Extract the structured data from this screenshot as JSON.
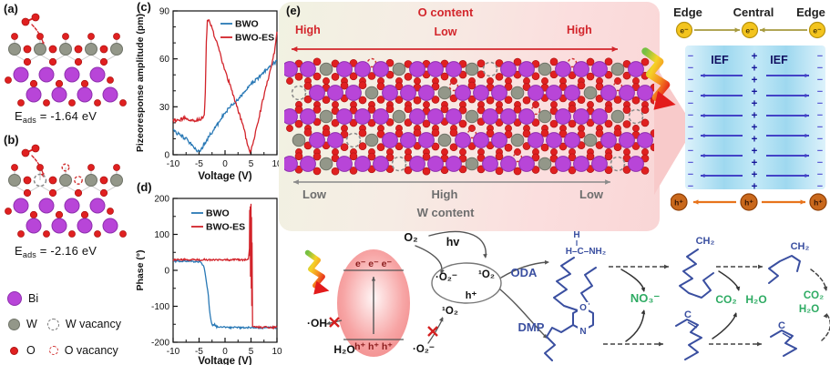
{
  "colors": {
    "bwo": "#2878b5",
    "bwo_es": "#d2232a",
    "bi": "#b845d8",
    "bi_stroke": "#8e2fae",
    "w": "#939789",
    "w_stroke": "#6f7368",
    "o": "#e02020",
    "o_stroke": "#b01414",
    "red_label": "#d3262c",
    "gray_arrow": "#8a8a8a",
    "blue_mol": "#3a4fa0",
    "green": "#2eab63",
    "plus": "#15159a",
    "minus": "#5b5bd6",
    "ief_arrow": "#4343c6",
    "ief_text": "#101060",
    "olive": "#a69a3e",
    "orange": "#e8741c",
    "electron_fill": "#f3c41e",
    "electron_stroke": "#b8930f",
    "hole_fill": "#c9681c",
    "hole_stroke": "#8f3f06"
  },
  "panel_a": {
    "label": "(a)",
    "eads_e": "E",
    "eads_sub": "ads",
    "eads_rest": " = -1.64 eV"
  },
  "panel_b": {
    "label": "(b)",
    "eads_e": "E",
    "eads_sub": "ads",
    "eads_rest": " = -2.16 eV"
  },
  "legend": {
    "bi": "Bi",
    "w": "W",
    "w_vacancy": "W vacancy",
    "o": "O",
    "o_vacancy": "O vacancy"
  },
  "chart_data": [
    {
      "type": "line",
      "label": "(c)",
      "xlabel": "Voltage (V)",
      "ylabel": "Pizeoresponse amplitude (pm)",
      "xlim": [
        -10,
        10
      ],
      "ylim": [
        0,
        90
      ],
      "xticks": [
        -10,
        -5,
        0,
        5,
        10
      ],
      "yticks": [
        0,
        30,
        60,
        90
      ],
      "xminor": 2.5,
      "yminor": 10,
      "noise": 1.1,
      "legend_position": "top-right",
      "series": [
        {
          "name": "BWO",
          "color": "#2878b5",
          "points": [
            [
              -10,
              15
            ],
            [
              -9.5,
              14
            ],
            [
              -9,
              13
            ],
            [
              -8.5,
              12
            ],
            [
              -8,
              11
            ],
            [
              -7.5,
              10
            ],
            [
              -7,
              8
            ],
            [
              -6.5,
              7
            ],
            [
              -6,
              5
            ],
            [
              -5.5,
              3
            ],
            [
              -5,
              2
            ],
            [
              -4.5,
              4
            ],
            [
              -4,
              7
            ],
            [
              -3.5,
              9
            ],
            [
              -3,
              12
            ],
            [
              -2.5,
              14
            ],
            [
              -2,
              17
            ],
            [
              -1.5,
              19
            ],
            [
              -1,
              21
            ],
            [
              -0.5,
              24
            ],
            [
              0,
              26
            ],
            [
              1,
              30
            ],
            [
              2,
              33
            ],
            [
              3,
              37
            ],
            [
              4,
              40
            ],
            [
              5,
              44
            ],
            [
              6,
              47
            ],
            [
              7,
              50
            ],
            [
              8,
              53
            ],
            [
              9,
              56
            ],
            [
              10,
              59
            ]
          ]
        },
        {
          "name": "BWO-ES",
          "color": "#d2232a",
          "points": [
            [
              -10,
              22
            ],
            [
              -9,
              21
            ],
            [
              -8,
              23
            ],
            [
              -7,
              22
            ],
            [
              -6,
              21
            ],
            [
              -5,
              22
            ],
            [
              -4.5,
              23
            ],
            [
              -4,
              24
            ],
            [
              -3.8,
              40
            ],
            [
              -3.6,
              70
            ],
            [
              -3.4,
              84
            ],
            [
              -3.2,
              85
            ],
            [
              -3,
              83
            ],
            [
              -2.5,
              79
            ],
            [
              -2,
              74
            ],
            [
              -1.5,
              69
            ],
            [
              -1,
              64
            ],
            [
              -0.5,
              58
            ],
            [
              0,
              53
            ],
            [
              0.5,
              48
            ],
            [
              1,
              43
            ],
            [
              1.5,
              38
            ],
            [
              2,
              33
            ],
            [
              2.5,
              28
            ],
            [
              3,
              23
            ],
            [
              3.5,
              18
            ],
            [
              4,
              11
            ],
            [
              4.5,
              5
            ],
            [
              4.8,
              1
            ],
            [
              5,
              3
            ],
            [
              5.5,
              9
            ],
            [
              6,
              16
            ],
            [
              6.5,
              23
            ],
            [
              7,
              30
            ],
            [
              7.5,
              37
            ],
            [
              8,
              44
            ],
            [
              8.5,
              50
            ],
            [
              9,
              57
            ],
            [
              9.5,
              64
            ],
            [
              10,
              77
            ]
          ]
        }
      ]
    },
    {
      "type": "line",
      "label": "(d)",
      "xlabel": "Voltage (V)",
      "ylabel": "Phase (°)",
      "xlim": [
        -10,
        10
      ],
      "ylim": [
        -200,
        200
      ],
      "xticks": [
        -10,
        -5,
        0,
        5,
        10
      ],
      "yticks": [
        -200,
        -100,
        0,
        100,
        200
      ],
      "xminor": 2.5,
      "yminor": 50,
      "noise": 2.5,
      "legend_position": "top-left",
      "series": [
        {
          "name": "BWO",
          "color": "#2878b5",
          "points": [
            [
              -10,
              25
            ],
            [
              -9,
              26
            ],
            [
              -8,
              25
            ],
            [
              -7,
              26
            ],
            [
              -6,
              25
            ],
            [
              -5,
              24
            ],
            [
              -4.5,
              20
            ],
            [
              -4,
              8
            ],
            [
              -3.6,
              -30
            ],
            [
              -3.2,
              -70
            ],
            [
              -3,
              -110
            ],
            [
              -2.7,
              -140
            ],
            [
              -2.4,
              -152
            ],
            [
              -2,
              -150
            ],
            [
              -1.6,
              -158
            ],
            [
              -1,
              -156
            ],
            [
              0,
              -158
            ],
            [
              1,
              -159
            ],
            [
              2,
              -158
            ],
            [
              3,
              -160
            ],
            [
              4,
              -159
            ],
            [
              5,
              -160
            ],
            [
              6,
              -159
            ],
            [
              7,
              -160
            ],
            [
              8,
              -159
            ],
            [
              9,
              -160
            ],
            [
              10,
              -159
            ]
          ]
        },
        {
          "name": "BWO-ES",
          "color": "#d2232a",
          "points": [
            [
              -10,
              30
            ],
            [
              -9,
              29
            ],
            [
              -8,
              30
            ],
            [
              -7,
              29
            ],
            [
              -6,
              30
            ],
            [
              -5,
              29
            ],
            [
              -4,
              30
            ],
            [
              -3,
              29
            ],
            [
              -2,
              30
            ],
            [
              -1,
              29
            ],
            [
              0,
              30
            ],
            [
              1,
              29
            ],
            [
              2,
              30
            ],
            [
              3,
              29
            ],
            [
              4,
              30
            ],
            [
              4.5,
              29
            ],
            [
              4.7,
              60
            ],
            [
              4.75,
              170
            ],
            [
              4.8,
              40
            ],
            [
              4.85,
              180
            ],
            [
              4.9,
              -20
            ],
            [
              4.95,
              120
            ],
            [
              5,
              185
            ],
            [
              5.05,
              -50
            ],
            [
              5.1,
              150
            ],
            [
              5.15,
              -100
            ],
            [
              5.2,
              80
            ],
            [
              5.3,
              -155
            ],
            [
              5.5,
              -158
            ],
            [
              6,
              -157
            ],
            [
              7,
              -159
            ],
            [
              8,
              -158
            ],
            [
              9,
              -159
            ],
            [
              10,
              -158
            ]
          ]
        }
      ]
    }
  ],
  "panel_e": {
    "label": "(e)",
    "o_content": "O content",
    "w_content": "W content",
    "o_high_left": "High",
    "o_low": "Low",
    "o_high_right": "High",
    "w_low_left": "Low",
    "w_high": "High",
    "w_low_right": "Low"
  },
  "ief_panel": {
    "edge_left": "Edge",
    "central": "Central",
    "edge_right": "Edge",
    "electron": "e⁻",
    "hole": "h⁺",
    "ief": "IEF",
    "plus": "+",
    "minus": "−"
  },
  "scheme": {
    "o2": "O₂",
    "hv": "hv",
    "electrons": "e⁻ e⁻ e⁻",
    "holes": "h⁺ h⁺ h⁺",
    "superoxide": "·O₂⁻",
    "singlet_o2": "¹O₂",
    "h_plus": "h⁺",
    "oh_radical": "·OH",
    "h2o": "H₂O",
    "superoxide_2": "·O₂⁻",
    "singlet_o2_2": "¹O₂",
    "oda": "ODA",
    "dmp": "DMP",
    "no3": "NO₃⁻",
    "co2": "CO₂",
    "h2o_2": "H₂O",
    "co2_3": "CO₂",
    "h2o_3": "H₂O",
    "h_top": "H",
    "head_group": "H–C–NH₂",
    "ring_o": "O",
    "ring_n": "N",
    "ch2": "CH₂",
    "c": "C",
    "ch2_2": "CH₂",
    "c_2": "C"
  }
}
